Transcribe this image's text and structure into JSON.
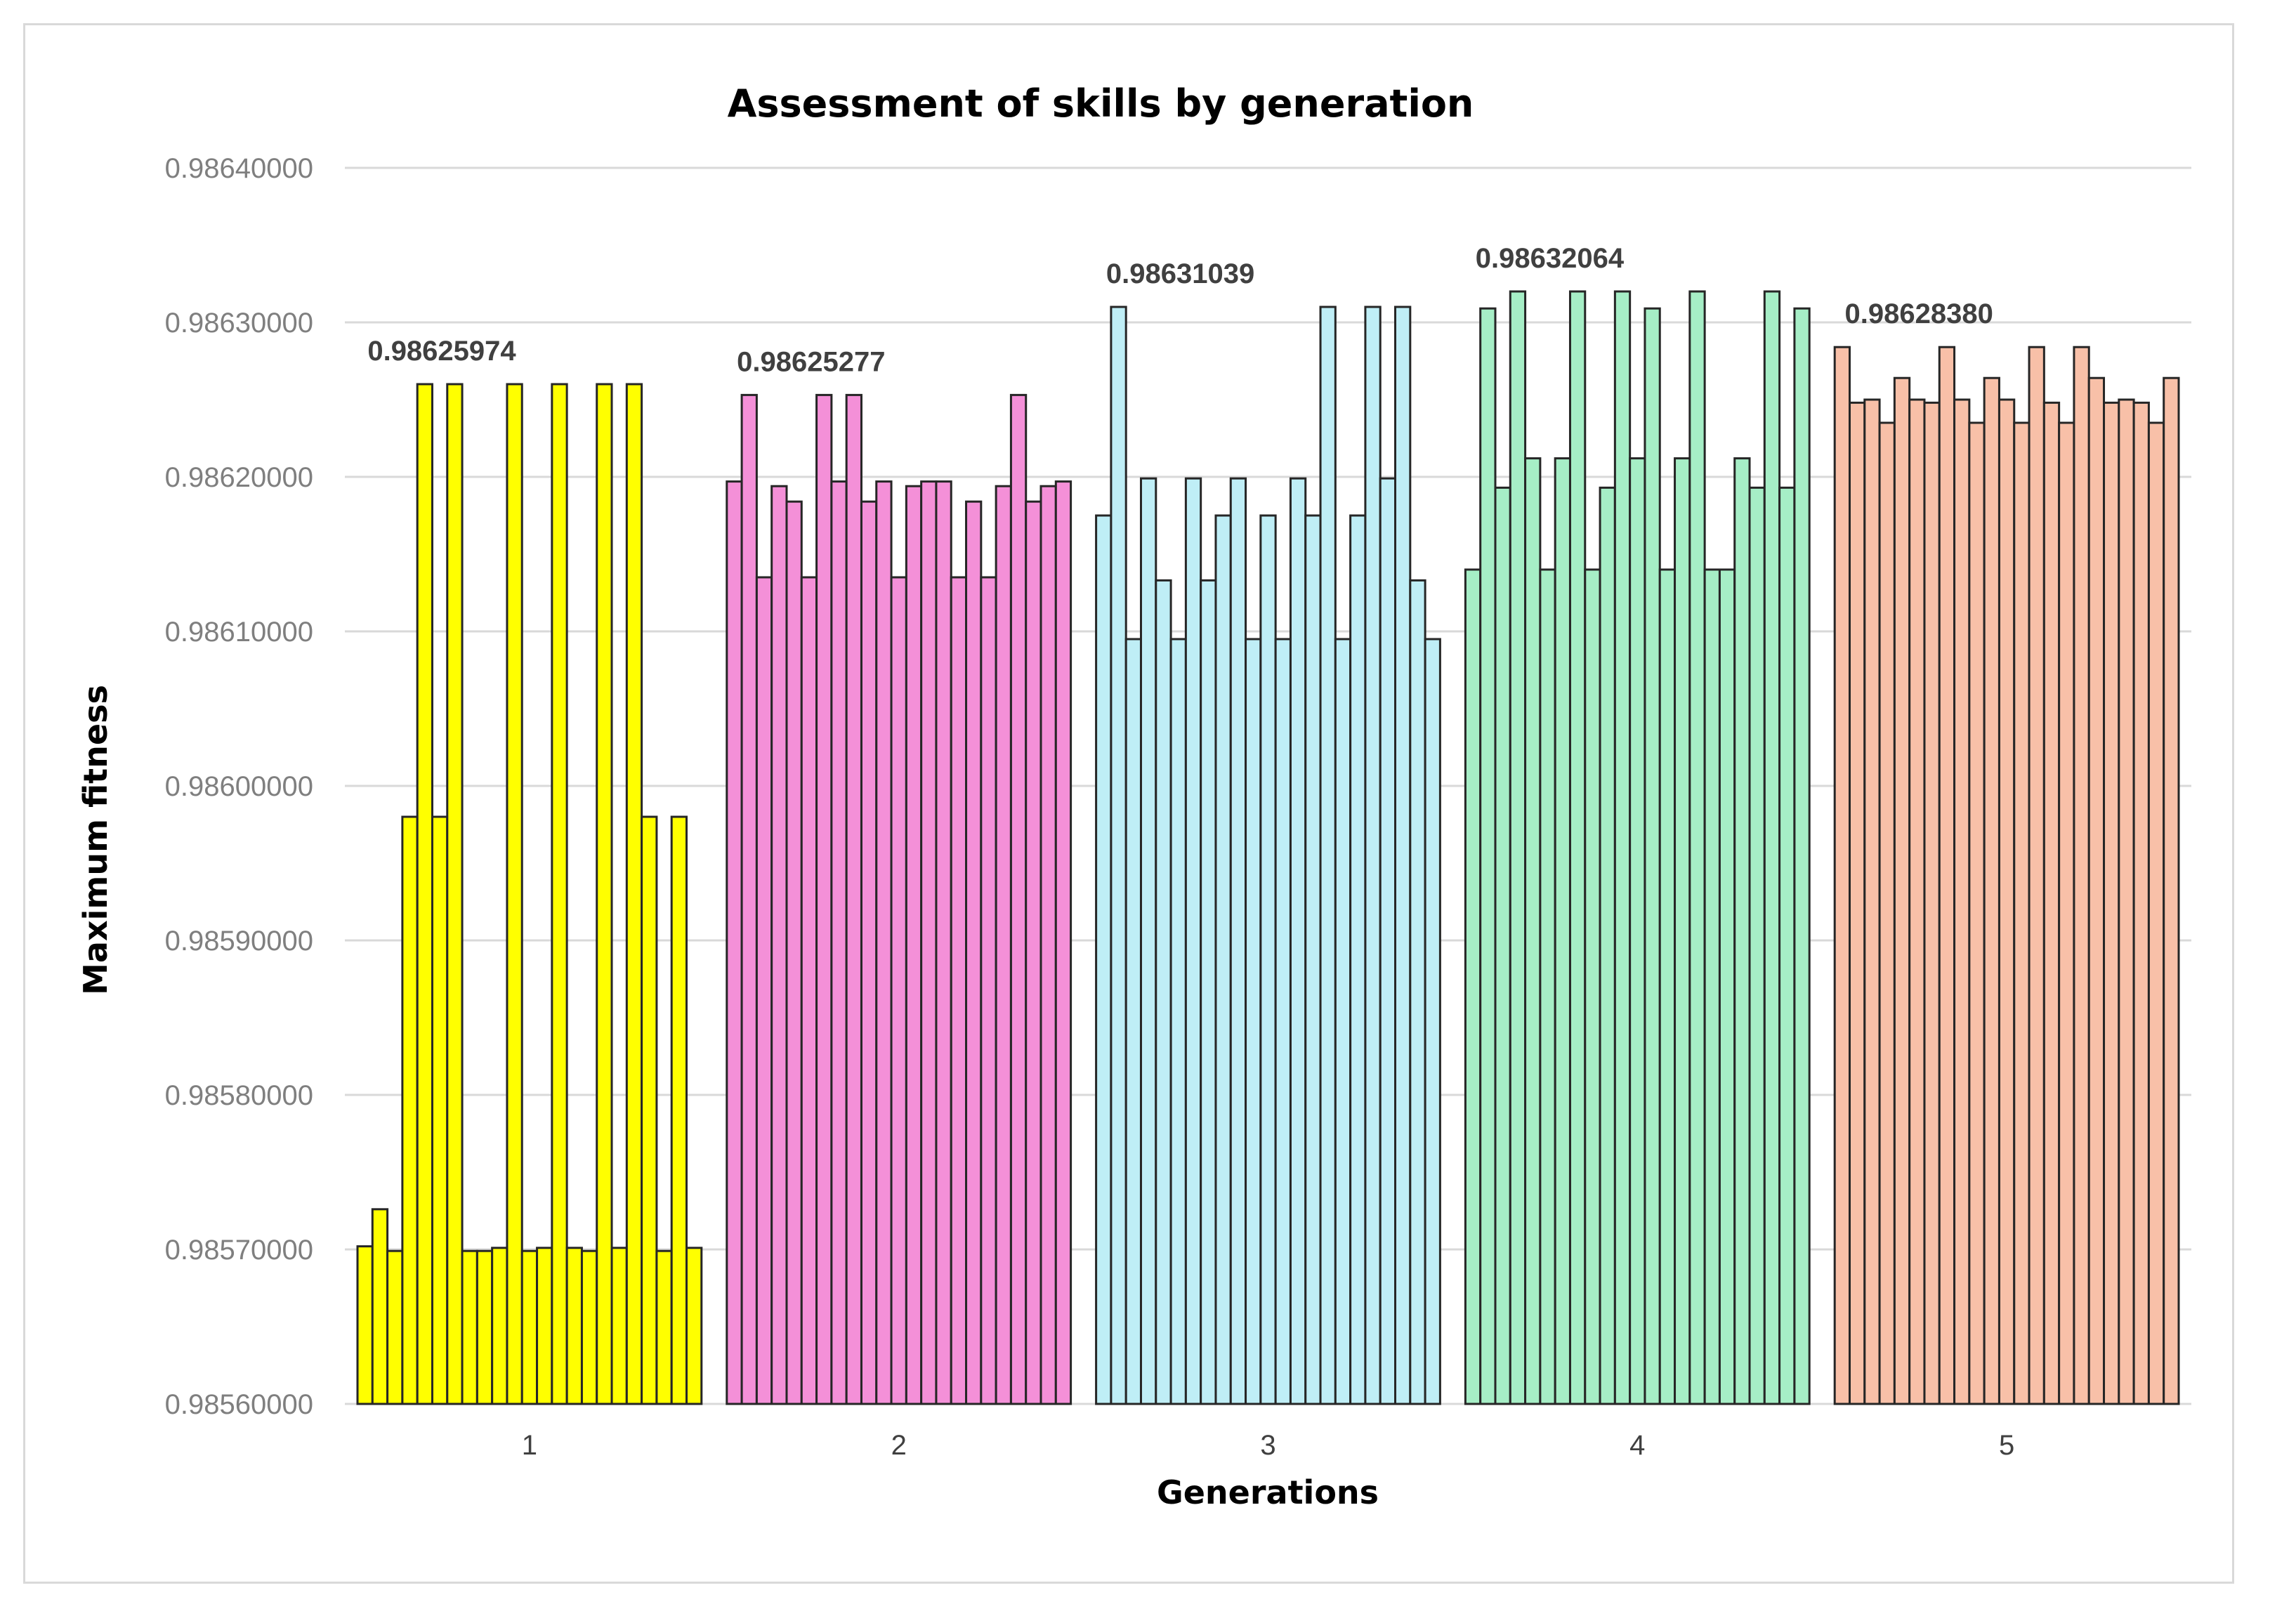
{
  "chart_data": {
    "type": "bar",
    "title": "Assessment of skills by generation",
    "xlabel": "Generations",
    "ylabel": "Maximum fitness",
    "ylim": [
      0.9856,
      0.9864
    ],
    "yticks": [
      "0.98560000",
      "0.98570000",
      "0.98580000",
      "0.98590000",
      "0.98600000",
      "0.98610000",
      "0.98620000",
      "0.98630000",
      "0.98640000"
    ],
    "grid": true,
    "legend": "none",
    "categories": [
      "1",
      "2",
      "3",
      "4",
      "5"
    ],
    "groups": [
      {
        "category": "1",
        "color": "#ffff00",
        "annotation": "0.98625974",
        "values": [
          0.985702,
          0.985726,
          0.985699,
          0.98598,
          0.98626,
          0.98598,
          0.98626,
          0.985699,
          0.985699,
          0.985701,
          0.98626,
          0.985699,
          0.985701,
          0.98626,
          0.985701,
          0.985699,
          0.98626,
          0.985701,
          0.98626,
          0.98598,
          0.985699,
          0.98598,
          0.985701
        ]
      },
      {
        "category": "2",
        "color": "#f490d8",
        "annotation": "0.98625277",
        "values": [
          0.986197,
          0.986253,
          0.986135,
          0.986194,
          0.986184,
          0.986135,
          0.986253,
          0.986197,
          0.986253,
          0.986184,
          0.986197,
          0.986135,
          0.986194,
          0.986197,
          0.986197,
          0.986135,
          0.986184,
          0.986135,
          0.986194,
          0.986253,
          0.986184,
          0.986194,
          0.986197
        ]
      },
      {
        "category": "3",
        "color": "#bfeef6",
        "annotation": "0.98631039",
        "values": [
          0.986175,
          0.98631,
          0.986095,
          0.986199,
          0.986133,
          0.986095,
          0.986199,
          0.986133,
          0.986175,
          0.986199,
          0.986095,
          0.986175,
          0.986095,
          0.986199,
          0.986175,
          0.98631,
          0.986095,
          0.986175,
          0.98631,
          0.986199,
          0.98631,
          0.986133,
          0.986095
        ]
      },
      {
        "category": "4",
        "color": "#a6eec6",
        "annotation": "0.98632064",
        "values": [
          0.98614,
          0.986309,
          0.986193,
          0.98632,
          0.986212,
          0.98614,
          0.986212,
          0.98632,
          0.98614,
          0.986193,
          0.98632,
          0.986212,
          0.986309,
          0.98614,
          0.986212,
          0.98632,
          0.98614,
          0.98614,
          0.986212,
          0.986193,
          0.98632,
          0.986193,
          0.986309
        ]
      },
      {
        "category": "5",
        "color": "#f8c0a8",
        "annotation": "0.98628380",
        "values": [
          0.986284,
          0.986248,
          0.98625,
          0.986235,
          0.986264,
          0.98625,
          0.986248,
          0.986284,
          0.98625,
          0.986235,
          0.986264,
          0.98625,
          0.986235,
          0.986284,
          0.986248,
          0.986235,
          0.986284,
          0.986264,
          0.986248,
          0.98625,
          0.986248,
          0.986235,
          0.986264
        ]
      }
    ]
  }
}
